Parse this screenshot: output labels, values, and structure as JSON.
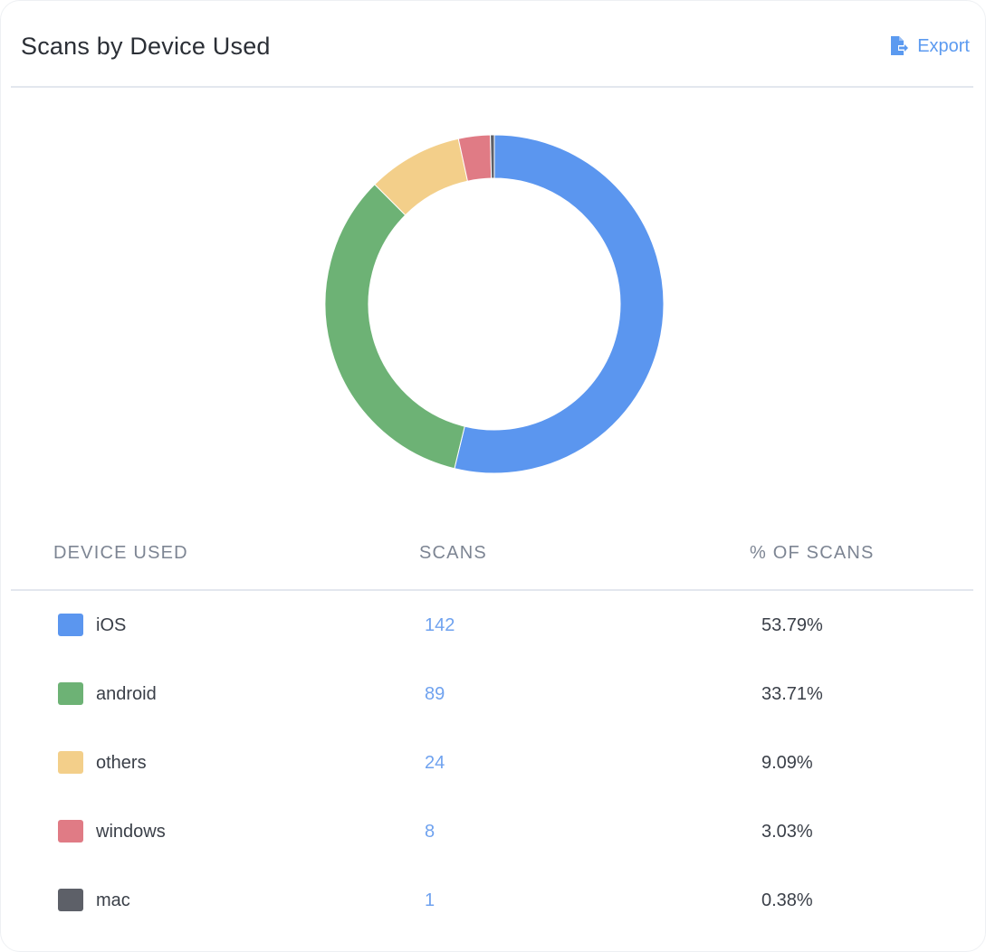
{
  "header": {
    "title": "Scans by Device Used",
    "export_label": "Export",
    "export_icon": "file-export-icon"
  },
  "table": {
    "columns": [
      "DEVICE USED",
      "SCANS",
      "% OF SCANS"
    ],
    "rows": [
      {
        "device": "iOS",
        "scans": "142",
        "percent": "53.79%",
        "color": "#5b96ef"
      },
      {
        "device": "android",
        "scans": "89",
        "percent": "33.71%",
        "color": "#6db275"
      },
      {
        "device": "others",
        "scans": "24",
        "percent": "9.09%",
        "color": "#f3cf8a"
      },
      {
        "device": "windows",
        "scans": "8",
        "percent": "3.03%",
        "color": "#e07b85"
      },
      {
        "device": "mac",
        "scans": "1",
        "percent": "0.38%",
        "color": "#5d6068"
      }
    ]
  },
  "chart_data": {
    "type": "pie",
    "variant": "donut",
    "categories": [
      "iOS",
      "android",
      "others",
      "windows",
      "mac"
    ],
    "values": [
      142,
      89,
      24,
      8,
      1
    ],
    "colors": [
      "#5b96ef",
      "#6db275",
      "#f3cf8a",
      "#e07b85",
      "#5d6068"
    ],
    "start_angle": "top",
    "direction": "clockwise"
  }
}
